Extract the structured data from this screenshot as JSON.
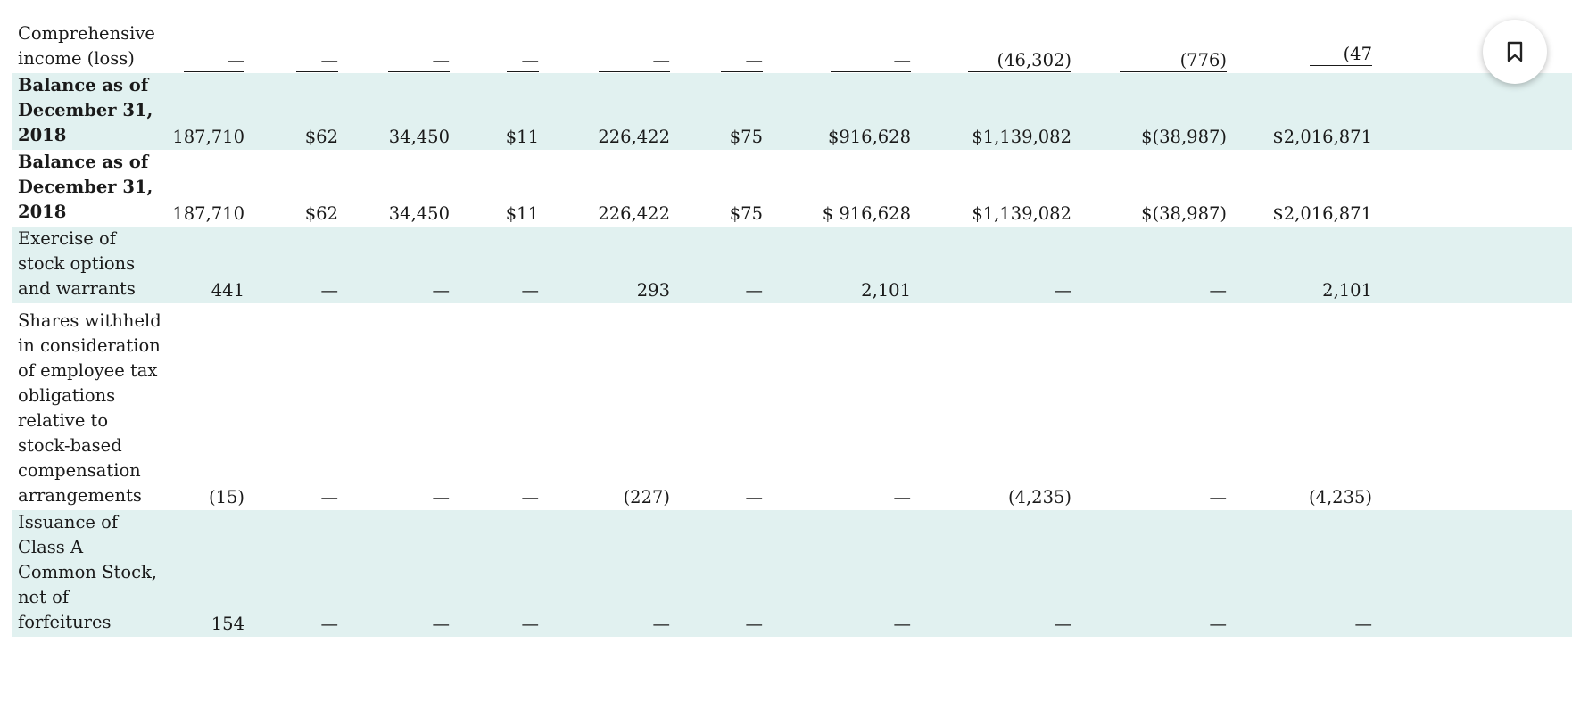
{
  "rows": [
    {
      "label": "Comprehensive income (loss)",
      "cells": [
        "—",
        "—",
        "—",
        "—",
        "—",
        "—",
        "—",
        "(46,302)",
        "(776)",
        "(47"
      ]
    },
    {
      "label": "Balance as of December 31, 2018",
      "cells": [
        "187,710",
        "$62",
        "34,450",
        "$11",
        "226,422",
        "$75",
        "$916,628",
        "$1,139,082",
        "$(38,987)",
        "$2,016,871"
      ]
    },
    {
      "label": "Balance as of December 31, 2018",
      "cells": [
        "187,710",
        "$62",
        "34,450",
        "$11",
        "226,422",
        "$75",
        "$ 916,628",
        "$1,139,082",
        "$(38,987)",
        "$2,016,871"
      ]
    },
    {
      "label": "Exercise of stock options and warrants",
      "cells": [
        "441",
        "—",
        "—",
        "—",
        "293",
        "—",
        "2,101",
        "—",
        "—",
        "2,101"
      ]
    },
    {
      "label": "Shares withheld in consideration of employee tax obligations relative to stock-based compensation arrangements",
      "cells": [
        "(15)",
        "—",
        "—",
        "—",
        "(227)",
        "—",
        "—",
        "(4,235)",
        "—",
        "(4,235)"
      ]
    },
    {
      "label": "Issuance of Class A Common Stock, net of forfeitures",
      "cells": [
        "154",
        "—",
        "—",
        "—",
        "—",
        "—",
        "—",
        "—",
        "—",
        "—"
      ]
    }
  ],
  "bookmark_icon": "bookmark-icon"
}
